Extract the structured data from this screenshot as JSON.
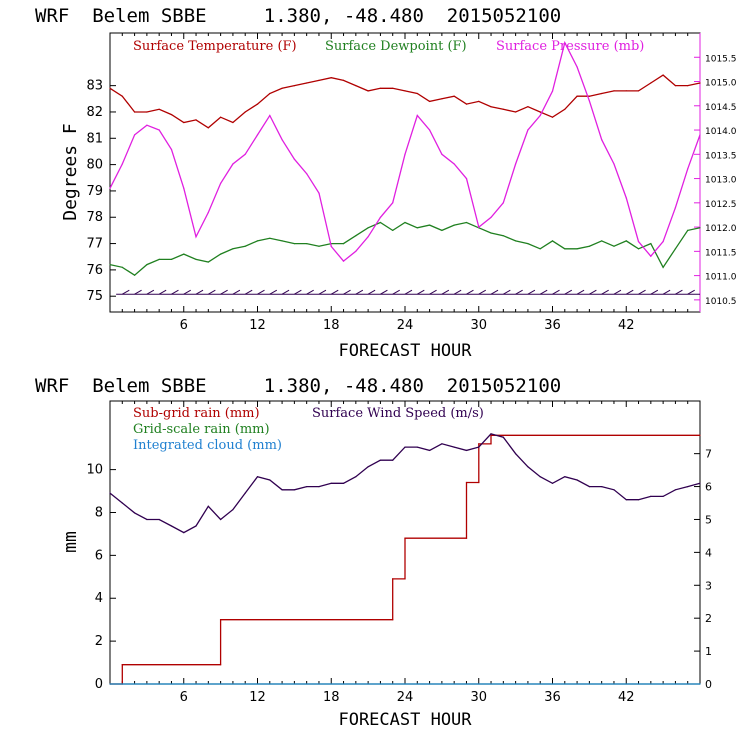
{
  "chart_data": [
    {
      "type": "line",
      "title": "WRF  Belem SBBE     1.380, -48.480  2015052100",
      "xlabel": "FORECAST HOUR",
      "ylabel": "Degrees F",
      "xlim": [
        0,
        48
      ],
      "ylim": [
        74.4,
        85.0
      ],
      "y2lim": [
        1010.25,
        1016.0
      ],
      "xticks": [
        "6",
        "12",
        "18",
        "24",
        "30",
        "36",
        "42"
      ],
      "yticks": [
        "75",
        "76",
        "77",
        "78",
        "79",
        "80",
        "81",
        "82",
        "83"
      ],
      "y2ticks": [
        "1010.5",
        "1011.0",
        "1011.5",
        "1012.0",
        "1012.5",
        "1013.0",
        "1013.5",
        "1014.0",
        "1014.5",
        "1015.0",
        "1015.5"
      ],
      "legend_position": "top",
      "series": [
        {
          "name": "Surface Temperature (F)",
          "color": "#b00000",
          "axis": "left",
          "x": [
            0,
            1,
            2,
            3,
            4,
            5,
            6,
            7,
            8,
            9,
            10,
            11,
            12,
            13,
            14,
            15,
            16,
            17,
            18,
            19,
            20,
            21,
            22,
            23,
            24,
            25,
            26,
            27,
            28,
            29,
            30,
            31,
            32,
            33,
            34,
            35,
            36,
            37,
            38,
            39,
            40,
            41,
            42,
            43,
            44,
            45,
            46,
            47,
            48
          ],
          "y": [
            82.9,
            82.6,
            82.0,
            82.0,
            82.1,
            81.9,
            81.6,
            81.7,
            81.4,
            81.8,
            81.6,
            82.0,
            82.3,
            82.7,
            82.9,
            83.0,
            83.1,
            83.2,
            83.3,
            83.2,
            83.0,
            82.8,
            82.9,
            82.9,
            82.8,
            82.7,
            82.4,
            82.5,
            82.6,
            82.3,
            82.4,
            82.2,
            82.1,
            82.0,
            82.2,
            82.0,
            81.8,
            82.1,
            82.6,
            82.6,
            82.7,
            82.8,
            82.8,
            82.8,
            83.1,
            83.4,
            83.0,
            83.0,
            83.1
          ]
        },
        {
          "name": "Surface Dewpoint (F)",
          "color": "#208020",
          "axis": "left",
          "x": [
            0,
            1,
            2,
            3,
            4,
            5,
            6,
            7,
            8,
            9,
            10,
            11,
            12,
            13,
            14,
            15,
            16,
            17,
            18,
            19,
            20,
            21,
            22,
            23,
            24,
            25,
            26,
            27,
            28,
            29,
            30,
            31,
            32,
            33,
            34,
            35,
            36,
            37,
            38,
            39,
            40,
            41,
            42,
            43,
            44,
            45,
            46,
            47,
            48
          ],
          "y": [
            76.2,
            76.1,
            75.8,
            76.2,
            76.4,
            76.4,
            76.6,
            76.4,
            76.3,
            76.6,
            76.8,
            76.9,
            77.1,
            77.2,
            77.1,
            77.0,
            77.0,
            76.9,
            77.0,
            77.0,
            77.3,
            77.6,
            77.8,
            77.5,
            77.8,
            77.6,
            77.7,
            77.5,
            77.7,
            77.8,
            77.6,
            77.4,
            77.3,
            77.1,
            77.0,
            76.8,
            77.1,
            76.8,
            76.8,
            76.9,
            77.1,
            76.9,
            77.1,
            76.8,
            77.0,
            76.1,
            76.8,
            77.5,
            77.6
          ]
        },
        {
          "name": "Surface Pressure (mb)",
          "color": "#e020e0",
          "axis": "right",
          "x": [
            0,
            1,
            2,
            3,
            4,
            5,
            6,
            7,
            8,
            9,
            10,
            11,
            12,
            13,
            14,
            15,
            16,
            17,
            18,
            19,
            20,
            21,
            22,
            23,
            24,
            25,
            26,
            27,
            28,
            29,
            30,
            31,
            32,
            33,
            34,
            35,
            36,
            37,
            38,
            39,
            40,
            41,
            42,
            43,
            44,
            45,
            46,
            47,
            48
          ],
          "y": [
            1012.8,
            1013.3,
            1013.9,
            1014.1,
            1014.0,
            1013.6,
            1012.8,
            1011.8,
            1012.3,
            1012.9,
            1013.3,
            1013.5,
            1013.9,
            1014.3,
            1013.8,
            1013.4,
            1013.1,
            1012.7,
            1011.6,
            1011.3,
            1011.5,
            1011.8,
            1012.2,
            1012.5,
            1013.5,
            1014.3,
            1014.0,
            1013.5,
            1013.3,
            1013.0,
            1012.0,
            1012.2,
            1012.5,
            1013.3,
            1014.0,
            1014.3,
            1014.8,
            1015.8,
            1015.3,
            1014.6,
            1013.8,
            1013.3,
            1012.6,
            1011.7,
            1011.4,
            1011.7,
            1012.4,
            1013.2,
            1013.9
          ]
        }
      ],
      "wind_barbs": "Surface wind barbs along y = 75 every hour"
    },
    {
      "type": "line",
      "title": "WRF  Belem SBBE     1.380, -48.480  2015052100",
      "xlabel": "FORECAST HOUR",
      "ylabel": "mm",
      "xlim": [
        0,
        48
      ],
      "ylim": [
        0,
        13.2
      ],
      "y2lim": [
        0,
        8.6
      ],
      "xticks": [
        "6",
        "12",
        "18",
        "24",
        "30",
        "36",
        "42"
      ],
      "yticks": [
        "0",
        "2",
        "4",
        "6",
        "8",
        "10"
      ],
      "y2ticks": [
        "0",
        "1",
        "2",
        "3",
        "4",
        "5",
        "6",
        "7"
      ],
      "legend_position": "top-left",
      "series": [
        {
          "name": "Sub-grid rain (mm)",
          "color": "#b00000",
          "axis": "left",
          "step": true,
          "x": [
            0,
            1.0,
            1.0,
            9.0,
            9.0,
            23.0,
            23.0,
            24.0,
            24.0,
            29.0,
            29.0,
            30.0,
            30.0,
            31.0,
            31.0,
            48
          ],
          "y": [
            0,
            0,
            0.9,
            0.9,
            3.0,
            3.0,
            4.9,
            4.9,
            6.8,
            6.8,
            9.4,
            9.4,
            11.2,
            11.2,
            11.6,
            11.6
          ]
        },
        {
          "name": "Grid-scale rain (mm)",
          "color": "#208020",
          "axis": "left",
          "x": [
            0,
            48
          ],
          "y": [
            0,
            0
          ]
        },
        {
          "name": "Integrated cloud (mm)",
          "color": "#2080d0",
          "axis": "left",
          "x": [
            0,
            48
          ],
          "y": [
            0,
            0
          ]
        },
        {
          "name": "Surface Wind Speed (m/s)",
          "color": "#300050",
          "axis": "right",
          "x": [
            0,
            1,
            2,
            3,
            4,
            5,
            6,
            7,
            8,
            9,
            10,
            11,
            12,
            13,
            14,
            15,
            16,
            17,
            18,
            19,
            20,
            21,
            22,
            23,
            24,
            25,
            26,
            27,
            28,
            29,
            30,
            31,
            32,
            33,
            34,
            35,
            36,
            37,
            38,
            39,
            40,
            41,
            42,
            43,
            44,
            45,
            46,
            47,
            48
          ],
          "y": [
            5.8,
            5.5,
            5.2,
            5.0,
            5.0,
            4.8,
            4.6,
            4.8,
            5.4,
            5.0,
            5.3,
            5.8,
            6.3,
            6.2,
            5.9,
            5.9,
            6.0,
            6.0,
            6.1,
            6.1,
            6.3,
            6.6,
            6.8,
            6.8,
            7.2,
            7.2,
            7.1,
            7.3,
            7.2,
            7.1,
            7.2,
            7.6,
            7.5,
            7.0,
            6.6,
            6.3,
            6.1,
            6.3,
            6.2,
            6.0,
            6.0,
            5.9,
            5.6,
            5.6,
            5.7,
            5.7,
            5.9,
            6.0,
            6.1
          ]
        }
      ]
    }
  ]
}
